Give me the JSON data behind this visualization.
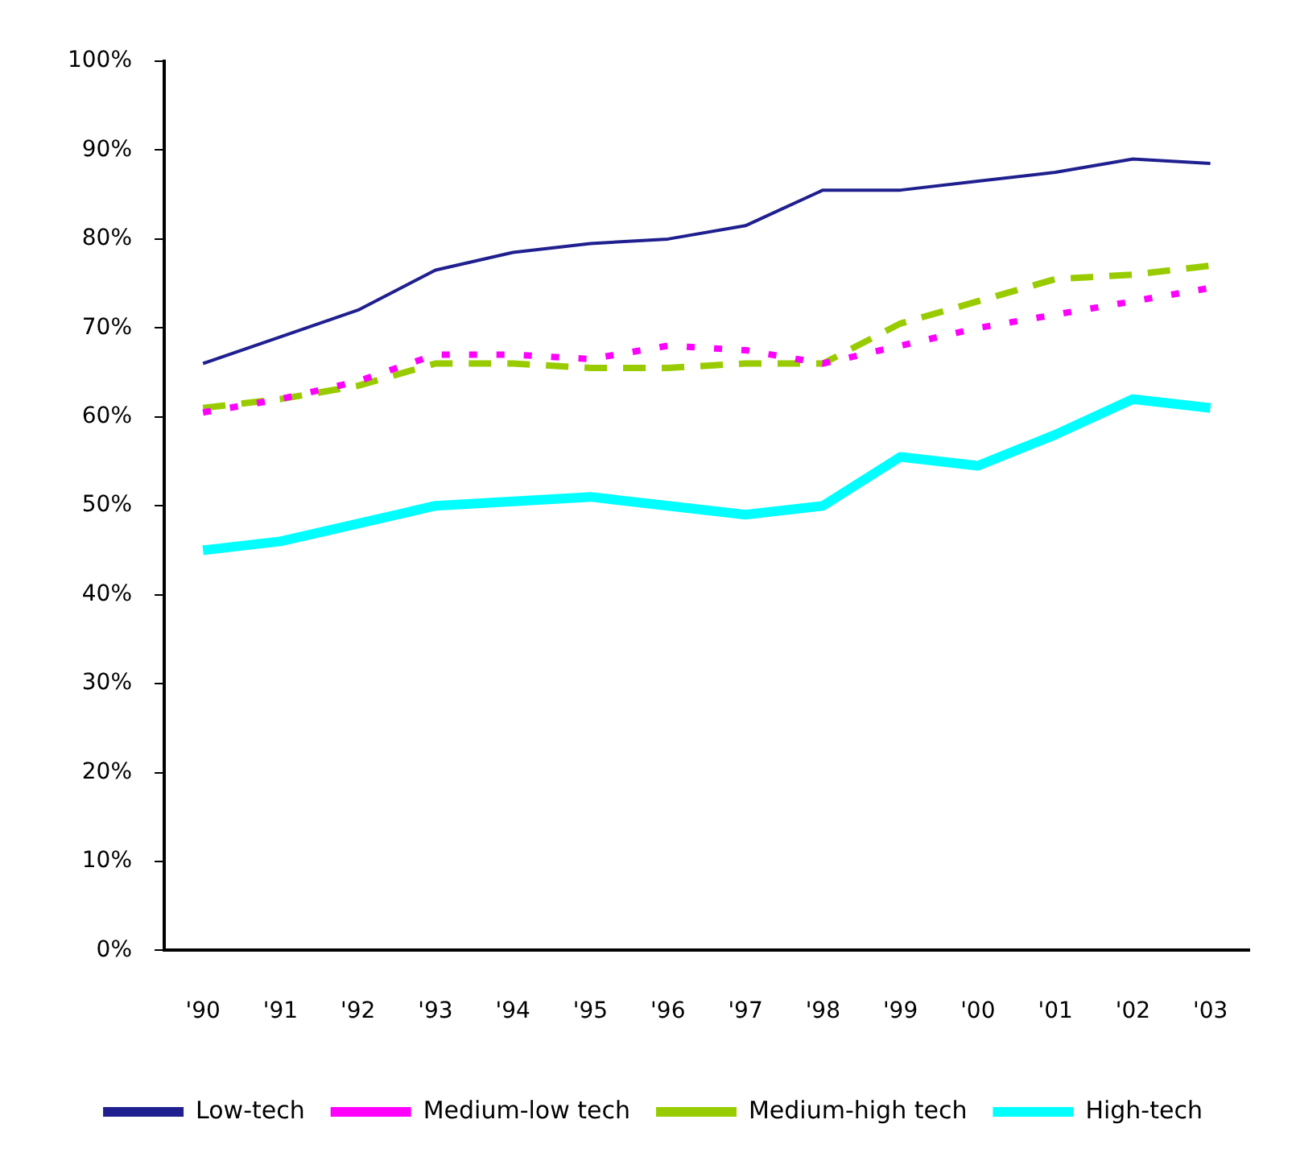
{
  "chart_data": {
    "type": "line",
    "categories": [
      "'90",
      "'91",
      "'92",
      "'93",
      "'94",
      "'95",
      "'96",
      "'97",
      "'98",
      "'99",
      "'00",
      "'01",
      "'02",
      "'03"
    ],
    "series": [
      {
        "name": "Low-tech",
        "color": "#1f1f8f",
        "line_style": "solid",
        "values": [
          66,
          69,
          72,
          76.5,
          78.5,
          79.5,
          80,
          81.5,
          85.5,
          85.5,
          86.5,
          87.5,
          89,
          88.5
        ]
      },
      {
        "name": "Medium-low tech",
        "color": "#ff00ff",
        "line_style": "dotted",
        "values": [
          60.5,
          62,
          64,
          67,
          67,
          66.5,
          68,
          67.5,
          66,
          68,
          70,
          71.5,
          73,
          74.5
        ]
      },
      {
        "name": "Medium-high tech",
        "color": "#99cc00",
        "line_style": "dashed",
        "values": [
          61,
          62,
          63.5,
          66,
          66,
          65.5,
          65.5,
          66,
          66,
          70.5,
          73,
          75.5,
          76,
          77
        ]
      },
      {
        "name": "High-tech",
        "color": "#00ffff",
        "line_style": "solid",
        "values": [
          45,
          46,
          48,
          50,
          50.5,
          51,
          50,
          49,
          50,
          55.5,
          54.5,
          58,
          62,
          61
        ]
      }
    ],
    "ylim": [
      0,
      100
    ],
    "yticks": [
      {
        "value": 0,
        "label": "0%"
      },
      {
        "value": 10,
        "label": "10%"
      },
      {
        "value": 20,
        "label": "20%"
      },
      {
        "value": 30,
        "label": "30%"
      },
      {
        "value": 40,
        "label": "40%"
      },
      {
        "value": 50,
        "label": "50%"
      },
      {
        "value": 60,
        "label": "60%"
      },
      {
        "value": 70,
        "label": "70%"
      },
      {
        "value": 80,
        "label": "80%"
      },
      {
        "value": 90,
        "label": "90%"
      },
      {
        "value": 100,
        "label": "100%"
      }
    ],
    "grid": false,
    "legend": "bottom",
    "marker": "none"
  }
}
